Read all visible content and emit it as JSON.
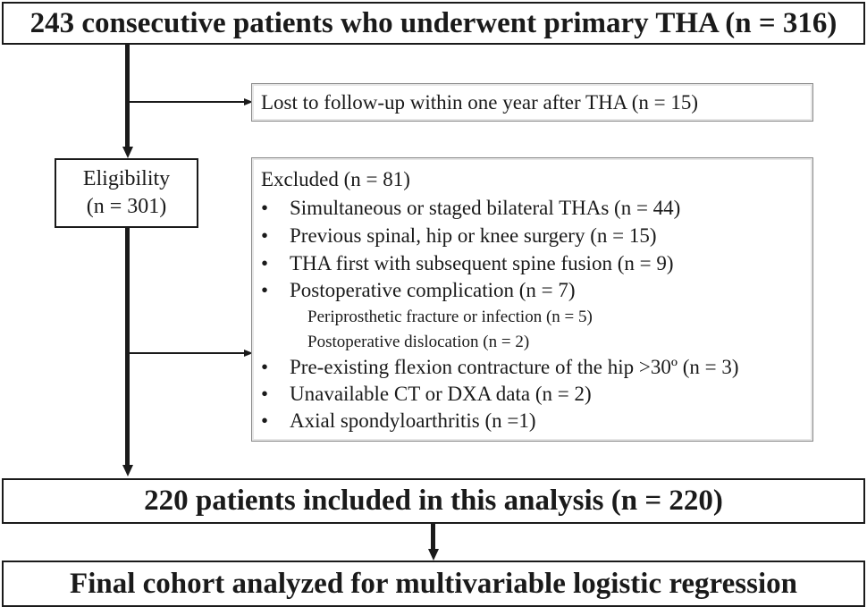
{
  "diagram": {
    "top_box": "243 consecutive patients who underwent primary THA (n = 316)",
    "lost_box": "Lost to follow-up within one year after THA (n = 15)",
    "eligibility_box": {
      "line1": "Eligibility",
      "line2": "(n = 301)"
    },
    "excluded_box": {
      "title": "Excluded (n = 81)",
      "items": [
        {
          "text": "Simultaneous or staged bilateral THAs (n = 44)"
        },
        {
          "text": "Previous spinal, hip or knee surgery (n = 15)"
        },
        {
          "text": "THA first with subsequent spine fusion (n = 9)"
        },
        {
          "text": "Postoperative complication (n = 7)"
        },
        {
          "text": "Pre-existing flexion contracture of the hip >30º (n = 3)"
        },
        {
          "text": "Unavailable CT or DXA data (n = 2)"
        },
        {
          "text": "Axial spondyloarthritis (n =1)"
        }
      ],
      "sub_items": [
        "Periprosthetic fracture or infection (n = 5)",
        "Postoperative dislocation (n = 2)"
      ],
      "bullet": "•"
    },
    "included_box": "220 patients included in this analysis (n = 220)",
    "final_box": "Final cohort analyzed for multivariable logistic regression"
  }
}
